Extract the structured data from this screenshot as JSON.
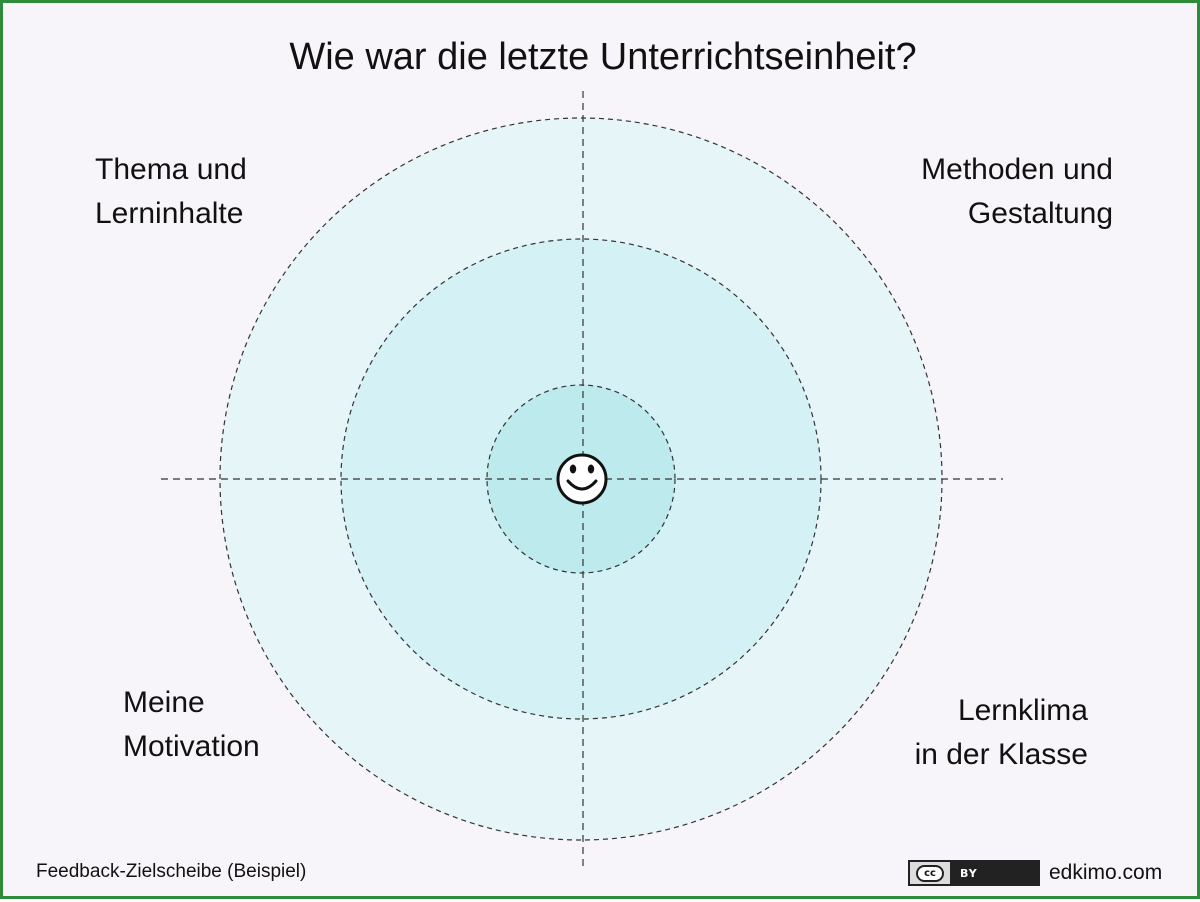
{
  "title": "Wie war die letzte Unterrichtseinheit?",
  "quadrants": {
    "top_left": [
      "Thema und",
      "Lerninhalte"
    ],
    "top_right": [
      "Methoden und",
      "Gestaltung"
    ],
    "bottom_left": [
      "Meine",
      "Motivation"
    ],
    "bottom_right": [
      "Lernklima",
      "in der Klasse"
    ]
  },
  "center_icon": "smiley-icon",
  "footer": {
    "caption": "Feedback-Zielscheibe (Beispiel)",
    "license_cc": "cc",
    "license_by": "BY",
    "site": "edkimo.com"
  },
  "colors": {
    "frame_border": "#2e8b3a",
    "background": "#f8f5fa",
    "ring_outer": "#e6f5f8",
    "ring_middle": "#d4f1f5",
    "ring_inner": "#bdebed"
  }
}
